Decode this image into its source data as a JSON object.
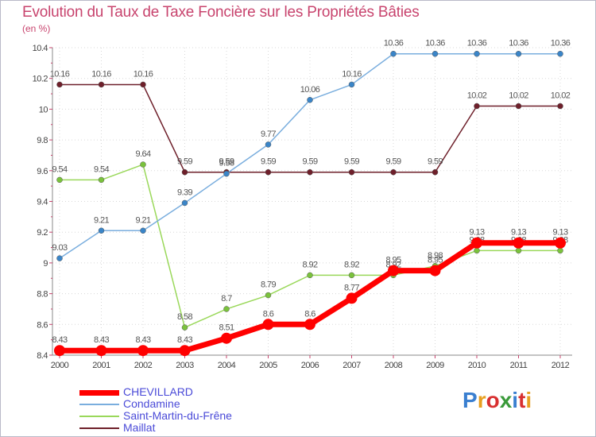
{
  "title": "Evolution du Taux de Taxe Foncière sur les Propriétés Bâties",
  "subtitle": "(en %)",
  "logo": {
    "text": "Proxiti",
    "colors": [
      "#3a7fd0",
      "#e8a020",
      "#d83030",
      "#3a9a3a",
      "#3a7fd0",
      "#d83030",
      "#e8a020"
    ]
  },
  "chart_data": {
    "type": "line",
    "x": [
      "2000",
      "2001",
      "2002",
      "2003",
      "2004",
      "2005",
      "2006",
      "2007",
      "2008",
      "2009",
      "2010",
      "2011",
      "2012"
    ],
    "ylim": [
      8.4,
      10.4
    ],
    "yticks": [
      8.4,
      8.6,
      8.8,
      9,
      9.2,
      9.4,
      9.6,
      9.8,
      10,
      10.2,
      10.4
    ],
    "ytick_labels": [
      "8.4",
      "8.6",
      "8.8",
      "9",
      "9.2",
      "9.4",
      "9.6",
      "9.8",
      "10",
      "10.2",
      "10.4"
    ],
    "grid": true,
    "legend_position": "bottom-left",
    "series": [
      {
        "name": "Maillat",
        "color": "#6e1f2a",
        "marker": "#6e1f2a",
        "width": 1.5,
        "radius": 3.5,
        "values": [
          10.16,
          10.16,
          10.16,
          9.59,
          9.59,
          9.59,
          9.59,
          9.59,
          9.59,
          9.59,
          10.02,
          10.02,
          10.02
        ],
        "labels": [
          "10.16",
          "10.16",
          "10.16",
          "9.59",
          "9.59",
          "9.59",
          "9.59",
          "9.59",
          "9.59",
          "9.59",
          "10.02",
          "10.02",
          "10.02"
        ]
      },
      {
        "name": "Saint-Martin-du-Frêne",
        "color": "#9ad85a",
        "marker": "#7ac23c",
        "width": 1.5,
        "radius": 3.5,
        "values": [
          9.54,
          9.54,
          9.64,
          8.58,
          8.7,
          8.79,
          8.92,
          8.92,
          8.92,
          8.98,
          9.08,
          9.08,
          9.08
        ],
        "labels": [
          "9.54",
          "9.54",
          "9.64",
          "8.58",
          "8.7",
          "8.79",
          "8.92",
          "8.92",
          "8.92",
          "8.98",
          "9.08",
          "9.08",
          "9.08"
        ]
      },
      {
        "name": "Condamine",
        "color": "#7aaede",
        "marker": "#3a85c8",
        "width": 1.5,
        "radius": 3.5,
        "values": [
          9.03,
          9.21,
          9.21,
          9.39,
          9.58,
          9.77,
          10.06,
          10.16,
          10.36,
          10.36,
          10.36,
          10.36,
          10.36
        ],
        "labels": [
          "9.03",
          "9.21",
          "9.21",
          "9.39",
          "9.58",
          "9.77",
          "10.06",
          "10.16",
          "10.36",
          "10.36",
          "10.36",
          "10.36",
          "10.36"
        ]
      },
      {
        "name": "CHEVILLARD",
        "color": "#ff0000",
        "marker": "#ff0000",
        "width": 7,
        "radius": 7,
        "values": [
          8.43,
          8.43,
          8.43,
          8.43,
          8.51,
          8.6,
          8.6,
          8.77,
          8.95,
          8.95,
          9.13,
          9.13,
          9.13
        ],
        "labels": [
          "8.43",
          "8.43",
          "8.43",
          "8.43",
          "8.51",
          "8.6",
          "8.6",
          "8.77",
          "8.95",
          "8.95",
          "9.13",
          "9.13",
          "9.13"
        ]
      }
    ],
    "legend_order": [
      "CHEVILLARD",
      "Condamine",
      "Saint-Martin-du-Frêne",
      "Maillat"
    ]
  }
}
